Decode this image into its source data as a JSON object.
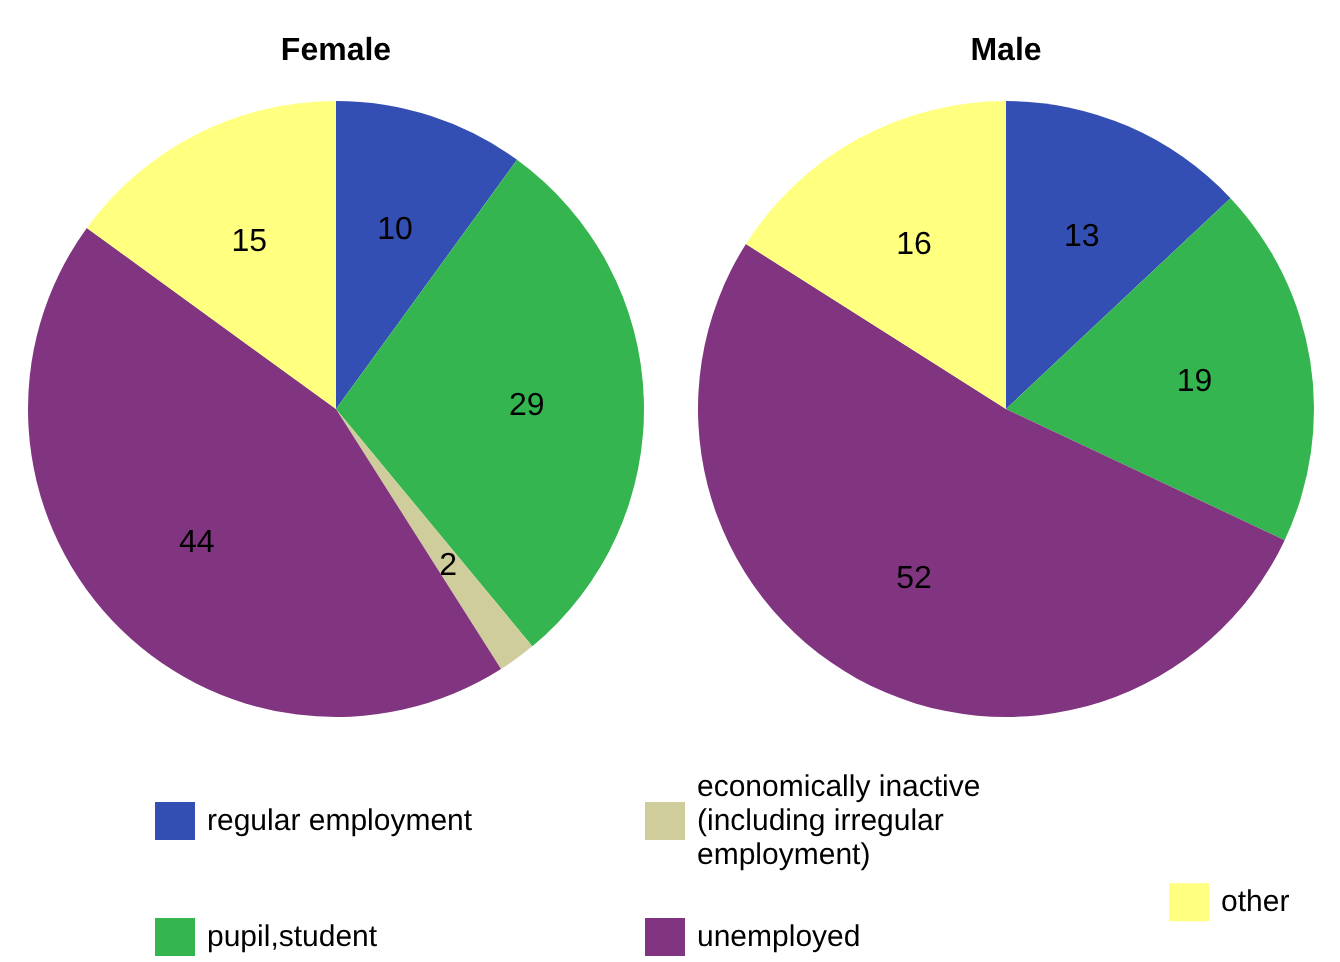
{
  "chart_data": {
    "type": "pie",
    "categories": [
      "regular employment",
      "pupil,student",
      "economically inactive (including irregular employment)",
      "unemployed",
      "other"
    ],
    "colors": [
      "#344fb3",
      "#35b54f",
      "#cfcd9c",
      "#81347f",
      "#ffff80"
    ],
    "series": [
      {
        "name": "Female",
        "values": [
          10,
          29,
          2,
          44,
          15
        ]
      },
      {
        "name": "Male",
        "values": [
          13,
          19,
          null,
          52,
          16
        ]
      }
    ],
    "data_labels": true,
    "legend": "bottom"
  }
}
